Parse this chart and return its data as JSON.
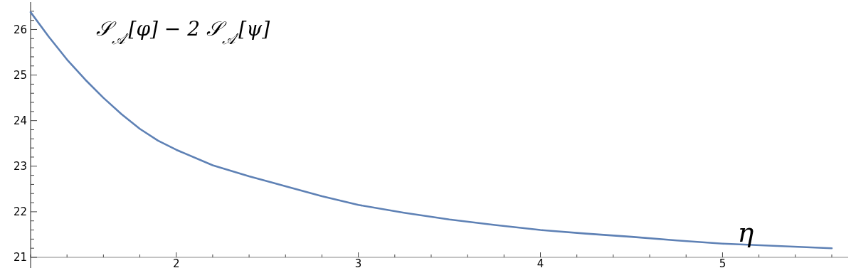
{
  "chart_data": {
    "type": "line",
    "title": "𝒮$_{𝒜′}$[φ] − 2 𝒮$_{𝒜′}$[ψ]",
    "xlabel": "η",
    "x": [
      1.2,
      1.3,
      1.4,
      1.5,
      1.6,
      1.7,
      1.8,
      1.9,
      2.0,
      2.2,
      2.4,
      2.6,
      2.8,
      3.0,
      3.25,
      3.5,
      3.75,
      4.0,
      4.25,
      4.5,
      4.75,
      5.0,
      5.3,
      5.6
    ],
    "series": [
      {
        "color": "#5e81b5",
        "values": [
          26.38,
          25.84,
          25.34,
          24.9,
          24.5,
          24.14,
          23.82,
          23.56,
          23.36,
          23.02,
          22.78,
          22.56,
          22.34,
          22.15,
          21.98,
          21.83,
          21.71,
          21.6,
          21.52,
          21.45,
          21.37,
          21.3,
          21.25,
          21.2
        ]
      }
    ],
    "xlim": [
      1.2,
      5.69
    ],
    "ylim": [
      21,
      26.6
    ],
    "xticks": [
      {
        "value": 1.2,
        "label": null
      },
      {
        "value": 1.4,
        "label": null
      },
      {
        "value": 1.6,
        "label": null
      },
      {
        "value": 1.8,
        "label": null
      },
      2,
      {
        "value": 2.2,
        "label": null
      },
      {
        "value": 2.4,
        "label": null
      },
      {
        "value": 2.6,
        "label": null
      },
      {
        "value": 2.8,
        "label": null
      },
      3,
      {
        "value": 3.2,
        "label": null
      },
      {
        "value": 3.4,
        "label": null
      },
      {
        "value": 3.6,
        "label": null
      },
      {
        "value": 3.8,
        "label": null
      },
      4,
      {
        "value": 4.2,
        "label": null
      },
      {
        "value": 4.4,
        "label": null
      },
      {
        "value": 4.6,
        "label": null
      },
      {
        "value": 4.8,
        "label": null
      },
      5,
      {
        "value": 5.2,
        "label": null
      },
      {
        "value": 5.4,
        "label": null
      },
      {
        "value": 5.6,
        "label": null
      }
    ],
    "yticks": [
      21,
      {
        "value": 21.2,
        "label": null
      },
      {
        "value": 21.4,
        "label": null
      },
      {
        "value": 21.6,
        "label": null
      },
      {
        "value": 21.8,
        "label": null
      },
      22,
      {
        "value": 22.2,
        "label": null
      },
      {
        "value": 22.4,
        "label": null
      },
      {
        "value": 22.6,
        "label": null
      },
      {
        "value": 22.8,
        "label": null
      },
      23,
      {
        "value": 23.2,
        "label": null
      },
      {
        "value": 23.4,
        "label": null
      },
      {
        "value": 23.6,
        "label": null
      },
      {
        "value": 23.8,
        "label": null
      },
      24,
      {
        "value": 24.2,
        "label": null
      },
      {
        "value": 24.4,
        "label": null
      },
      {
        "value": 24.6,
        "label": null
      },
      {
        "value": 24.8,
        "label": null
      },
      25,
      {
        "value": 25.2,
        "label": null
      },
      {
        "value": 25.4,
        "label": null
      },
      {
        "value": 25.6,
        "label": null
      },
      {
        "value": 25.8,
        "label": null
      },
      26,
      {
        "value": 26.2,
        "label": null
      },
      {
        "value": 26.4,
        "label": null
      }
    ],
    "grid": false,
    "marker": "none",
    "line_style": "solid"
  }
}
